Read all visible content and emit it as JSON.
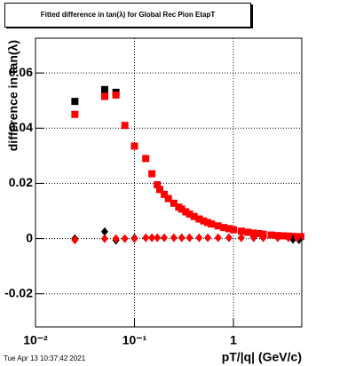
{
  "chart_data": {
    "type": "scatter",
    "title": "Fitted difference in tan(λ) for Global Rec Pion EtapT",
    "x_label": "pT/|q| (GeV/c)",
    "y_label": "difference in tan(λ)",
    "footer": "Tue Apr 13 10:37:42 2021",
    "xscale": "log",
    "grid": true,
    "xlim": [
      0.01,
      4.9
    ],
    "ylim": [
      -0.032,
      0.0726
    ],
    "xticks": [
      {
        "value": 0.01,
        "label": "10⁻²"
      },
      {
        "value": 0.1,
        "label": "10⁻¹"
      },
      1
    ],
    "yticks": [
      -0.02,
      0,
      0.02,
      0.04,
      0.06
    ],
    "series": [
      {
        "marker": "square",
        "color": "#000000",
        "x": [
          0.025,
          0.05,
          0.065
        ],
        "values": [
          0.0497,
          0.054,
          0.053
        ]
      },
      {
        "marker": "square",
        "color": "#ff0000",
        "x": [
          0.025,
          0.05,
          0.065,
          0.08,
          0.1,
          0.13,
          0.15,
          0.17,
          0.18,
          0.2,
          0.22,
          0.25,
          0.28,
          0.3,
          0.33,
          0.36,
          0.4,
          0.45,
          0.5,
          0.55,
          0.6,
          0.7,
          0.8,
          0.9,
          1.0,
          1.2,
          1.4,
          1.6,
          1.8,
          2.0,
          2.4,
          2.8,
          3.2,
          3.6,
          4.0,
          4.4,
          4.8
        ],
        "values": [
          0.045,
          0.0515,
          0.052,
          0.041,
          0.0335,
          0.029,
          0.0235,
          0.0195,
          0.0178,
          0.016,
          0.0145,
          0.0128,
          0.0114,
          0.0107,
          0.0097,
          0.0089,
          0.008,
          0.0071,
          0.0064,
          0.0058,
          0.0053,
          0.0046,
          0.004,
          0.0036,
          0.0032,
          0.0027,
          0.0023,
          0.002,
          0.0018,
          0.0016,
          0.0013,
          0.0011,
          0.001,
          0.0009,
          0.0008,
          0.0007,
          0.0007
        ]
      },
      {
        "marker": "diamond",
        "color": "#000000",
        "x": [
          0.025,
          0.05,
          0.065,
          0.1,
          4.0,
          4.6
        ],
        "values": [
          0.0,
          0.0025,
          -0.0006,
          0.0002,
          -0.0003,
          -0.0004
        ]
      },
      {
        "marker": "diamond",
        "color": "#ff0000",
        "x": [
          0.025,
          0.05,
          0.065,
          0.08,
          0.1,
          0.13,
          0.15,
          0.17,
          0.2,
          0.25,
          0.3,
          0.36,
          0.45,
          0.55,
          0.7,
          0.9,
          1.2,
          1.6,
          2.0,
          2.8,
          3.6,
          4.4
        ],
        "values": [
          -0.0005,
          0.0,
          0.0,
          0.0,
          0.0,
          0.0003,
          0.0003,
          0.0003,
          0.0003,
          0.0003,
          0.0003,
          0.0003,
          0.0003,
          0.0003,
          0.0003,
          0.0003,
          0.0003,
          0.0003,
          0.0003,
          0.0003,
          0.0003,
          0.0003
        ]
      }
    ]
  }
}
